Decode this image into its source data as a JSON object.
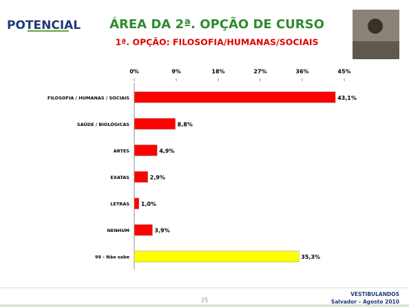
{
  "logo": "POTENCIAL",
  "page_number": "25",
  "footer": [
    "VESTIBULANDOS",
    "Salvador – Agosto 2010"
  ],
  "chart_data": {
    "type": "hbar",
    "title": "ÁREA DA 2ª. OPÇÃO DE CURSO",
    "subtitle": "1ª. OPÇÃO: FILOSOFIA/HUMANAS/SOCIAIS",
    "categories": [
      "FILOSOFIA / HUMANAS / SOCIAIS",
      "SAÚDE / BIOLÓGICAS",
      "ARTES",
      "EXATAS",
      "LETRAS",
      "NENHUM",
      "99 - Não sabe"
    ],
    "values": [
      43.1,
      8.8,
      4.9,
      2.9,
      1.0,
      3.9,
      35.3
    ],
    "value_labels": [
      "43,1%",
      "8,8%",
      "4,9%",
      "2,9%",
      "1,0%",
      "3,9%",
      "35,3%"
    ],
    "colors": [
      "#ff0000",
      "#ff0000",
      "#ff0000",
      "#ff0000",
      "#ff0000",
      "#ff0000",
      "#ffff00"
    ],
    "xlim": [
      0,
      45
    ],
    "xticks": [
      {
        "value": 0,
        "label": "0%"
      },
      {
        "value": 9,
        "label": "9%"
      },
      {
        "value": 18,
        "label": "18%"
      },
      {
        "value": 27,
        "label": "27%"
      },
      {
        "value": 36,
        "label": "36%"
      },
      {
        "value": 45,
        "label": "45%"
      }
    ]
  }
}
